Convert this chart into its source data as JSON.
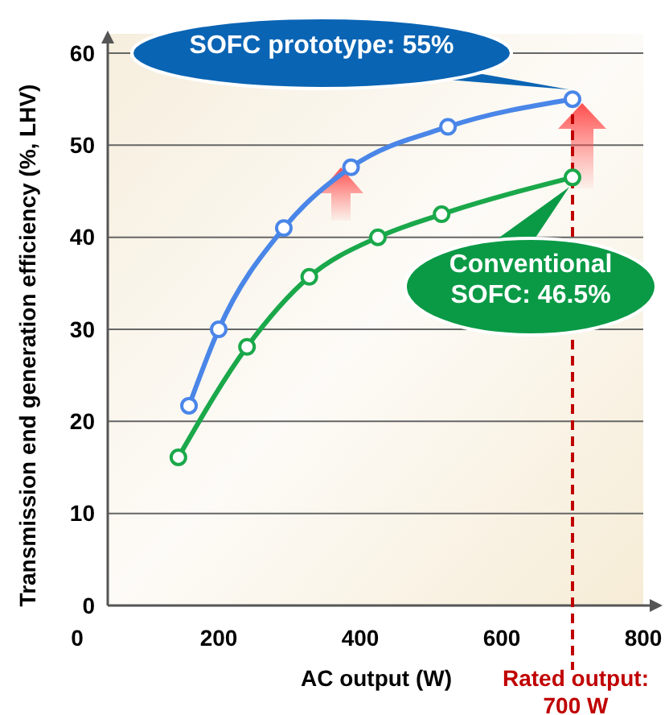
{
  "chart_data": {
    "type": "line",
    "ylabel": "Transmission end generation efficiency (%, LHV)",
    "xlabel": "AC output (W)",
    "xlim": [
      0,
      800
    ],
    "xticks": [
      0,
      200,
      400,
      600,
      800
    ],
    "ylim": [
      0,
      60
    ],
    "yticks": [
      0,
      10,
      20,
      30,
      40,
      50,
      60
    ],
    "grid": "y",
    "marker": "circle",
    "line_style": "solid",
    "series": [
      {
        "color": "#4a86e8",
        "x": [
          158,
          200,
          292,
          387,
          524,
          700
        ],
        "values": [
          21.7,
          30,
          41,
          47.6,
          52,
          55
        ]
      },
      {
        "color": "#1aa84a",
        "x": [
          143,
          240,
          328,
          425,
          515,
          700
        ],
        "values": [
          16.1,
          28.1,
          35.7,
          40,
          42.5,
          46.5
        ]
      }
    ],
    "ref_lines": [
      {
        "axis": "x",
        "value": 700,
        "label": "Rated output:\n700 W",
        "color": "#c00000",
        "line_style": "dashed"
      }
    ],
    "annotations": [
      {
        "text": "SOFC prototype: 55%",
        "x": 700,
        "y": 55
      },
      {
        "text": "Conventional\nSOFC: 46.5%",
        "x": 700,
        "y": 46.5
      }
    ]
  }
}
